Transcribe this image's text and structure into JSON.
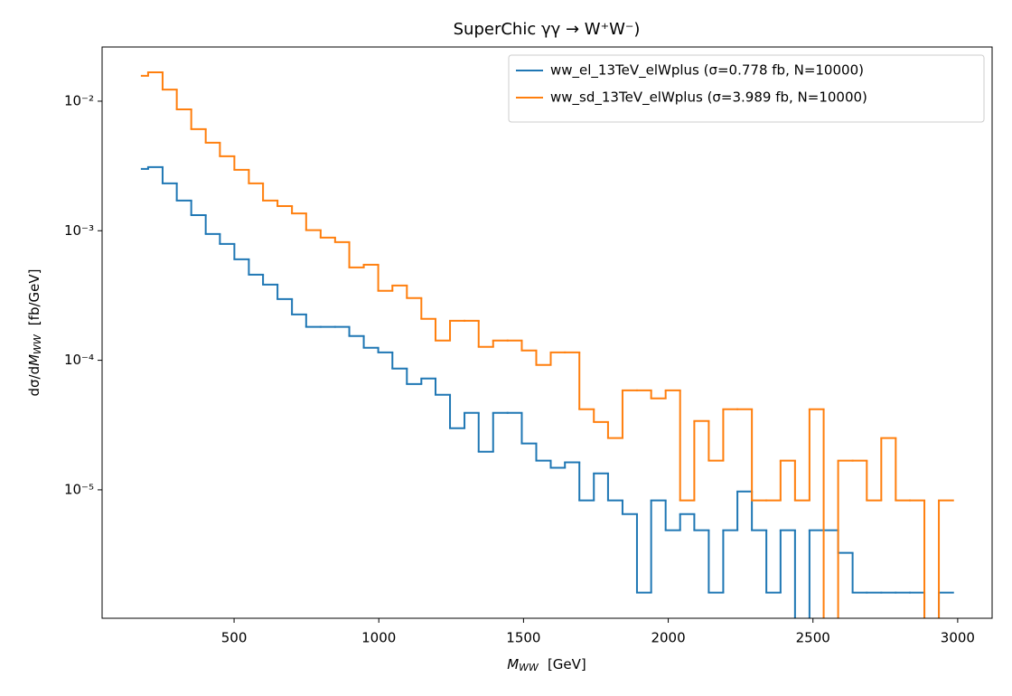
{
  "chart_data": {
    "type": "histogram",
    "title": "SuperChic γγ → W⁺W⁻)",
    "x_label": {
      "symbol": "M",
      "subscript": "WW",
      "unit": "[GeV]"
    },
    "y_label": {
      "prefix": "dσ/d",
      "symbol": "M",
      "subscript": "WW",
      "unit": "[fb/GeV]"
    },
    "log_y": true,
    "legend_loc": "upper right",
    "xlim": [
      44,
      3119
    ],
    "ylim": [
      1.02e-06,
      0.0262
    ],
    "xticks": [
      500,
      1000,
      1500,
      2000,
      2500,
      3000
    ],
    "yticks": [
      {
        "value": 0.01,
        "label": "10⁻²"
      },
      {
        "value": 0.001,
        "label": "10⁻³"
      },
      {
        "value": 0.0001,
        "label": "10⁻⁴"
      },
      {
        "value": 1e-05,
        "label": "10⁻⁵"
      }
    ],
    "bins": [
      181,
      203,
      253,
      302,
      352,
      402,
      451,
      501,
      551,
      600,
      650,
      700,
      749,
      799,
      849,
      898,
      948,
      998,
      1047,
      1097,
      1147,
      1196,
      1246,
      1296,
      1345,
      1395,
      1445,
      1494,
      1544,
      1594,
      1643,
      1693,
      1743,
      1792,
      1842,
      1892,
      1941,
      1991,
      2041,
      2090,
      2140,
      2190,
      2239,
      2289,
      2339,
      2388,
      2438,
      2488,
      2537,
      2587,
      2637,
      2686,
      2736,
      2786,
      2835,
      2885,
      2935,
      2984
    ],
    "series": [
      {
        "name": "ww_el_13TeV_elWplus (σ=0.778 fb, N=10000)",
        "color": "#1f77b4",
        "values": [
          0.003,
          0.0031,
          0.00232,
          0.00171,
          0.00132,
          0.000944,
          0.000791,
          0.000602,
          0.000458,
          0.000384,
          0.000297,
          0.000226,
          0.000181,
          0.000181,
          0.000181,
          0.000154,
          0.000125,
          0.000115,
          8.63e-05,
          6.56e-05,
          7.23e-05,
          5.42e-05,
          2.99e-05,
          3.93e-05,
          1.97e-05,
          3.93e-05,
          3.93e-05,
          2.28e-05,
          1.68e-05,
          1.48e-05,
          1.63e-05,
          8.28e-06,
          1.34e-05,
          8.28e-06,
          6.5e-06,
          1.61e-06,
          8.28e-06,
          4.88e-06,
          6.5e-06,
          4.88e-06,
          1.61e-06,
          4.88e-06,
          9.7e-06,
          4.88e-06,
          1.61e-06,
          4.88e-06,
          null,
          4.88e-06,
          4.88e-06,
          3.26e-06,
          1.61e-06,
          1.61e-06,
          1.61e-06,
          1.61e-06,
          1.61e-06,
          null,
          1.61e-06
        ]
      },
      {
        "name": "ww_sd_13TeV_elWplus (σ=3.989 fb, N=10000)",
        "color": "#ff7f0e",
        "values": [
          0.0157,
          0.0167,
          0.0123,
          0.00865,
          0.00608,
          0.00478,
          0.00376,
          0.00295,
          0.00232,
          0.00171,
          0.00155,
          0.00136,
          0.00101,
          0.000885,
          0.000817,
          0.000521,
          0.000547,
          0.000344,
          0.000378,
          0.000302,
          0.000209,
          0.000142,
          0.000202,
          0.000202,
          0.000127,
          0.000142,
          0.000142,
          0.000119,
          9.2e-05,
          0.000115,
          0.000115,
          4.19e-05,
          3.34e-05,
          2.51e-05,
          5.86e-05,
          5.86e-05,
          5.08e-05,
          5.86e-05,
          8.28e-06,
          3.4e-05,
          1.68e-05,
          4.19e-05,
          4.19e-05,
          8.28e-06,
          8.28e-06,
          1.68e-05,
          8.28e-06,
          4.19e-05,
          null,
          1.68e-05,
          1.68e-05,
          8.28e-06,
          2.51e-05,
          8.28e-06,
          8.28e-06,
          null,
          8.28e-06
        ]
      }
    ]
  }
}
